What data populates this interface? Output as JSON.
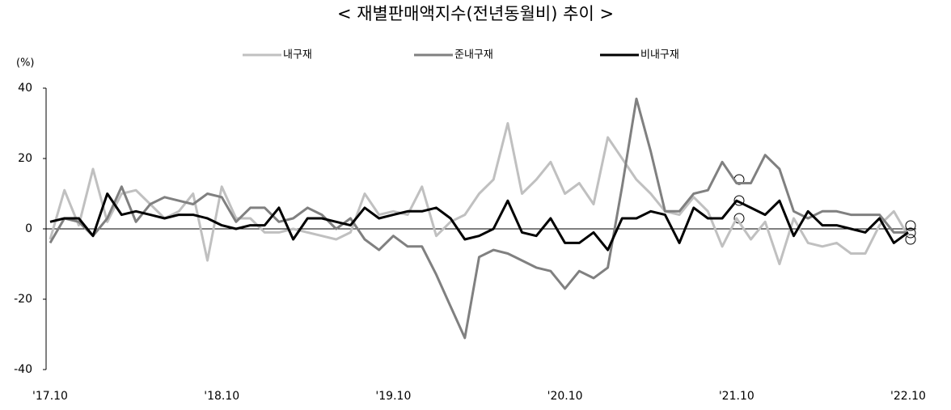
{
  "chart_data": {
    "type": "line",
    "title": "< 재별판매액지수(전년동월비) 추이 >",
    "y_label": "(%)",
    "categories": [
      "'17.10",
      null,
      null,
      null,
      null,
      null,
      null,
      null,
      null,
      null,
      null,
      null,
      "'18.10",
      null,
      null,
      null,
      null,
      null,
      null,
      null,
      null,
      null,
      null,
      null,
      "'19.10",
      null,
      null,
      null,
      null,
      null,
      null,
      null,
      null,
      null,
      null,
      null,
      "'20.10",
      null,
      null,
      null,
      null,
      null,
      null,
      null,
      null,
      null,
      null,
      null,
      "'21.10",
      null,
      null,
      null,
      null,
      null,
      null,
      null,
      null,
      null,
      null,
      null,
      "'22.10"
    ],
    "series": [
      {
        "name": "내구재",
        "color": "#c0c0c0",
        "values": [
          -3,
          11,
          1,
          17,
          2,
          10,
          11,
          7,
          3,
          5,
          10,
          -9,
          12,
          3,
          3,
          -1,
          -1,
          0,
          -1,
          -2,
          -3,
          -1,
          10,
          4,
          5,
          4,
          12,
          -2,
          2,
          4,
          10,
          14,
          30,
          10,
          14,
          19,
          10,
          13,
          7,
          26,
          20,
          14,
          10,
          5,
          4,
          9,
          5,
          -5,
          3,
          -3,
          2,
          -10,
          3,
          -4,
          -5,
          -4,
          -7,
          -7,
          1,
          5,
          -2
        ]
      },
      {
        "name": "준내구재",
        "color": "#808080",
        "values": [
          -4,
          3,
          2,
          -2,
          3,
          12,
          2,
          7,
          9,
          8,
          7,
          10,
          9,
          2,
          6,
          6,
          2,
          3,
          6,
          4,
          0,
          3,
          -3,
          -6,
          -2,
          -5,
          -5,
          -13,
          -22,
          -31,
          -8,
          -6,
          -7,
          -9,
          -11,
          -12,
          -17,
          -12,
          -14,
          -11,
          12,
          37,
          22,
          5,
          5,
          10,
          11,
          19,
          13,
          13,
          21,
          17,
          5,
          3,
          5,
          5,
          4,
          4,
          4,
          -1,
          -1
        ]
      },
      {
        "name": "비내구재",
        "color": "#000000",
        "values": [
          2,
          3,
          3,
          -2,
          10,
          4,
          5,
          4,
          3,
          4,
          4,
          3,
          1,
          0,
          1,
          1,
          6,
          -3,
          3,
          3,
          2,
          1,
          6,
          3,
          4,
          5,
          5,
          6,
          3,
          -3,
          -2,
          0,
          8,
          -1,
          -2,
          3,
          -4,
          -4,
          -1,
          -6,
          3,
          3,
          5,
          4,
          -4,
          6,
          3,
          3,
          8,
          6,
          4,
          8,
          -2,
          5,
          1,
          1,
          0,
          -1,
          3,
          -4,
          -1
        ]
      }
    ],
    "ylim": [
      -40,
      40
    ],
    "yticks": [
      40,
      20,
      0,
      -20,
      -40
    ]
  }
}
